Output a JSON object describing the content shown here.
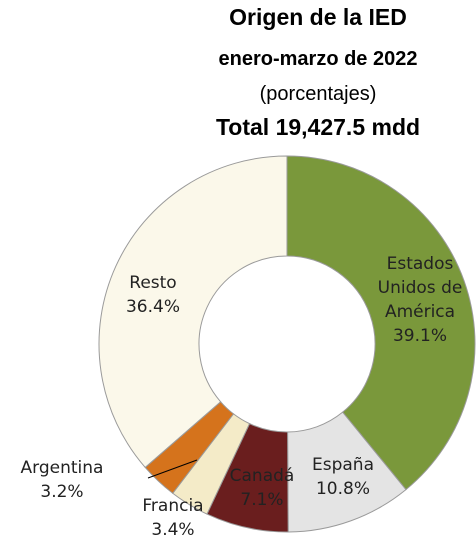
{
  "chart_data": {
    "type": "donut",
    "title": "Origen de la IED",
    "subtitle": "enero-marzo de 2022",
    "unit_note": "(porcentajes)",
    "total": "Total 19,427.5 mdd",
    "categories": [
      "Estados Unidos de América",
      "España",
      "Canadá",
      "Francia",
      "Argentina",
      "Resto"
    ],
    "values": [
      39.1,
      10.8,
      7.1,
      3.4,
      3.2,
      36.4
    ],
    "value_labels": [
      "39.1%",
      "10.8%",
      "7.1%",
      "3.4%",
      "3.2%",
      "36.4%"
    ],
    "colors": [
      "#7a983b",
      "#e4e4e4",
      "#6a1e1e",
      "#f4ebc8",
      "#d5731c",
      "#fbf8ea"
    ]
  }
}
